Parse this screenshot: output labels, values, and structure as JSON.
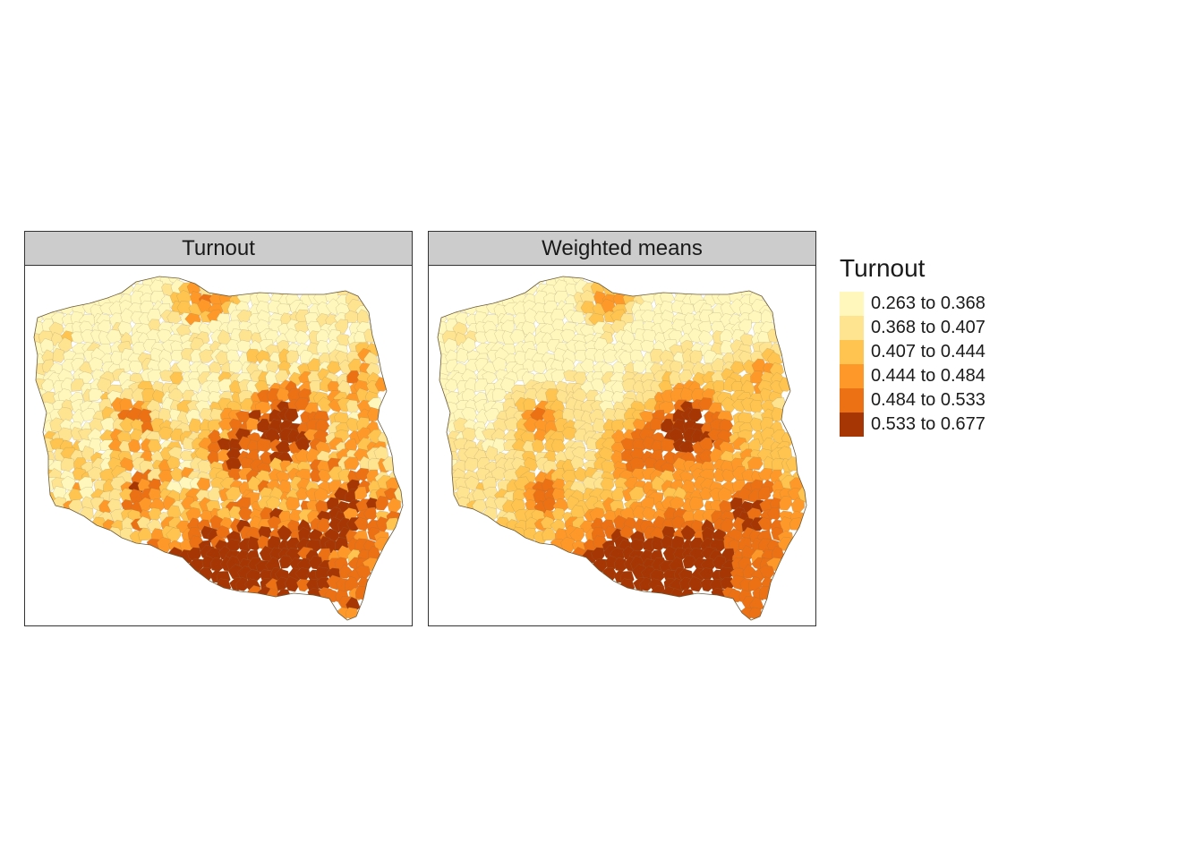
{
  "panels": [
    {
      "title": "Turnout",
      "variant": "raw"
    },
    {
      "title": "Weighted means",
      "variant": "smoothed"
    }
  ],
  "legend": {
    "title": "Turnout",
    "items": [
      {
        "label": "0.263 to 0.368",
        "color": "#fff7bc"
      },
      {
        "label": "0.368 to 0.407",
        "color": "#fee391"
      },
      {
        "label": "0.407 to 0.444",
        "color": "#fec44f"
      },
      {
        "label": "0.444 to 0.484",
        "color": "#fe9929"
      },
      {
        "label": "0.484 to 0.533",
        "color": "#ec7014"
      },
      {
        "label": "0.533 to 0.677",
        "color": "#a63603"
      }
    ]
  },
  "colors": {
    "strip_background": "#cccccc",
    "border": "#333333",
    "region_outline": "#8a7a55"
  }
}
